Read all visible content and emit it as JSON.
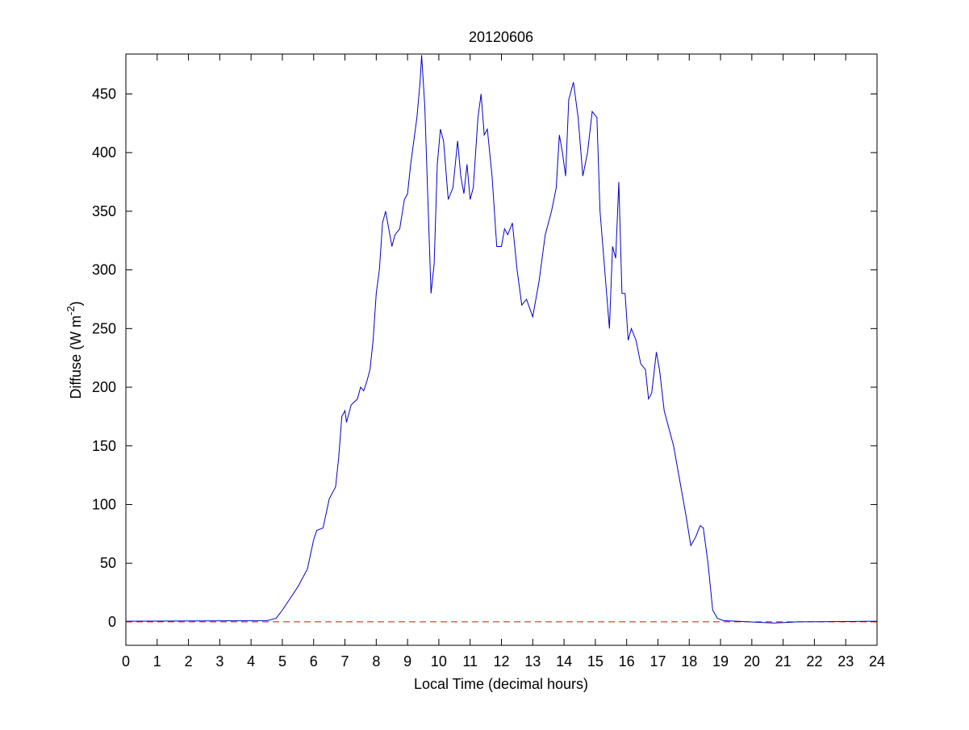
{
  "chart_data": {
    "type": "line",
    "title": "20120606",
    "xlabel": "Local Time (decimal hours)",
    "ylabel": [
      "Diffuse (W m",
      "-2",
      ")"
    ],
    "xlim": [
      0,
      24
    ],
    "xticks": [
      0,
      1,
      2,
      3,
      4,
      5,
      6,
      7,
      8,
      9,
      10,
      11,
      12,
      13,
      14,
      15,
      16,
      17,
      18,
      19,
      20,
      21,
      22,
      23,
      24
    ],
    "ylim": [
      -20,
      484
    ],
    "yticks": [
      0,
      50,
      100,
      150,
      200,
      250,
      300,
      350,
      400,
      450
    ],
    "hlines": [
      {
        "value": 0,
        "color": "#ff0000",
        "dash": true
      }
    ],
    "series": [
      {
        "color": "#0000cc",
        "x": [
          0,
          4.5,
          4.8,
          5,
          5.5,
          5.8,
          6,
          6.1,
          6.3,
          6.5,
          6.6,
          6.7,
          6.8,
          6.9,
          7,
          7.05,
          7.2,
          7.4,
          7.5,
          7.6,
          7.7,
          7.8,
          7.9,
          8,
          8.1,
          8.2,
          8.3,
          8.4,
          8.5,
          8.6,
          8.75,
          8.9,
          9,
          9.1,
          9.2,
          9.3,
          9.4,
          9.45,
          9.55,
          9.65,
          9.75,
          9.85,
          9.95,
          10.05,
          10.15,
          10.3,
          10.45,
          10.6,
          10.7,
          10.8,
          10.9,
          11,
          11.1,
          11.25,
          11.35,
          11.45,
          11.55,
          11.7,
          11.85,
          12,
          12.1,
          12.2,
          12.35,
          12.5,
          12.65,
          12.8,
          13,
          13.2,
          13.4,
          13.6,
          13.75,
          13.85,
          13.95,
          14.05,
          14.15,
          14.3,
          14.45,
          14.6,
          14.75,
          14.9,
          15.05,
          15.15,
          15.3,
          15.45,
          15.55,
          15.65,
          15.75,
          15.85,
          15.95,
          16.05,
          16.15,
          16.3,
          16.45,
          16.6,
          16.7,
          16.8,
          16.95,
          17.05,
          17.2,
          17.35,
          17.5,
          17.7,
          17.9,
          18.05,
          18.2,
          18.35,
          18.45,
          18.6,
          18.75,
          18.9,
          19.1,
          19.5,
          20.7,
          21.5,
          24
        ],
        "values": [
          0.5,
          1,
          3,
          10,
          30,
          45,
          70,
          78,
          80,
          105,
          110,
          115,
          140,
          175,
          180,
          170,
          185,
          190,
          200,
          197,
          205,
          215,
          240,
          280,
          300,
          340,
          350,
          335,
          320,
          330,
          335,
          360,
          365,
          390,
          410,
          430,
          460,
          483,
          440,
          360,
          280,
          305,
          390,
          420,
          410,
          360,
          370,
          410,
          380,
          365,
          390,
          360,
          370,
          430,
          450,
          415,
          420,
          380,
          320,
          320,
          335,
          330,
          340,
          300,
          270,
          275,
          260,
          290,
          330,
          350,
          370,
          415,
          400,
          380,
          445,
          460,
          430,
          380,
          400,
          435,
          430,
          350,
          300,
          250,
          320,
          310,
          375,
          280,
          280,
          240,
          250,
          240,
          220,
          215,
          190,
          195,
          230,
          215,
          180,
          165,
          150,
          120,
          90,
          65,
          72,
          82,
          80,
          50,
          10,
          3,
          1,
          0.5,
          -1,
          0,
          0.5
        ]
      }
    ]
  }
}
